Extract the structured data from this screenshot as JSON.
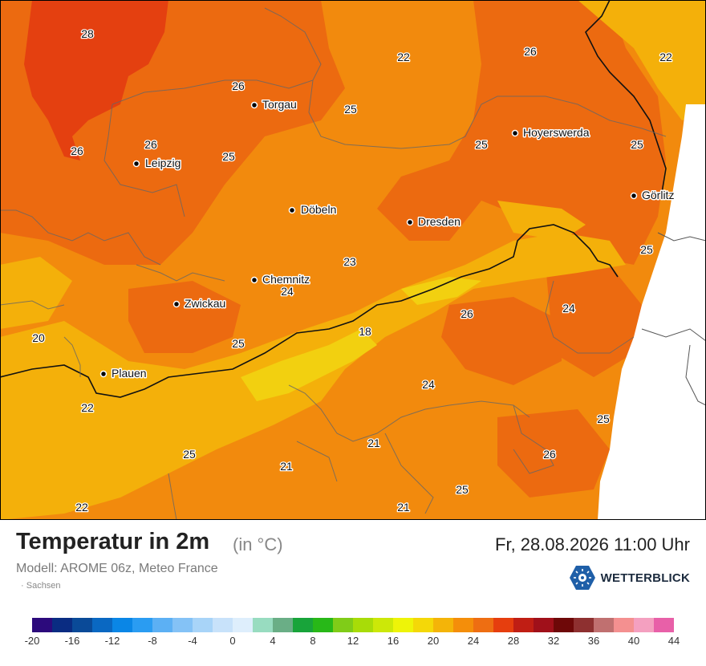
{
  "title": "Temperatur in 2m",
  "unit": "(in °C)",
  "model": "Modell: AROME 06z, Meteo France",
  "region": "Sachsen",
  "datetime": "Fr, 28.08.2026 11:00 Uhr",
  "brand": "WETTERBLICK",
  "legend": {
    "colors": [
      "#2c0a7c",
      "#0a2c82",
      "#0a4a98",
      "#0a68c2",
      "#0a86e6",
      "#2a9cf2",
      "#5cb0f4",
      "#84c2f6",
      "#a8d4f8",
      "#c8e2fa",
      "#deeefc",
      "#98dcc0",
      "#6aae86",
      "#18a43a",
      "#28b818",
      "#80cc18",
      "#a8dc08",
      "#cce808",
      "#eef408",
      "#f4d808",
      "#f4b408",
      "#f48e0a",
      "#ee6e12",
      "#e63e0e",
      "#c01e14",
      "#a0101a",
      "#6e0808",
      "#8e3030",
      "#c07070",
      "#f49090",
      "#f4a0c0",
      "#e860a8"
    ],
    "labels": [
      "-20",
      "-16",
      "-12",
      "-8",
      "-4",
      "0",
      "4",
      "8",
      "12",
      "16",
      "20",
      "24",
      "28",
      "32",
      "36",
      "40",
      "44"
    ]
  },
  "cities": [
    {
      "name": "Torgau"
    },
    {
      "name": "Hoyerswerda"
    },
    {
      "name": "Leipzig"
    },
    {
      "name": "Görlitz"
    },
    {
      "name": "Döbeln"
    },
    {
      "name": "Dresden"
    },
    {
      "name": "Chemnitz"
    },
    {
      "name": "Zwickau"
    },
    {
      "name": "Plauen"
    }
  ],
  "values": [
    "28",
    "22",
    "26",
    "22",
    "26",
    "25",
    "26",
    "26",
    "25",
    "25",
    "25",
    "23",
    "24",
    "24",
    "20",
    "18",
    "26",
    "25",
    "24",
    "25",
    "22",
    "21",
    "26",
    "25",
    "21",
    "25",
    "22",
    "21"
  ]
}
